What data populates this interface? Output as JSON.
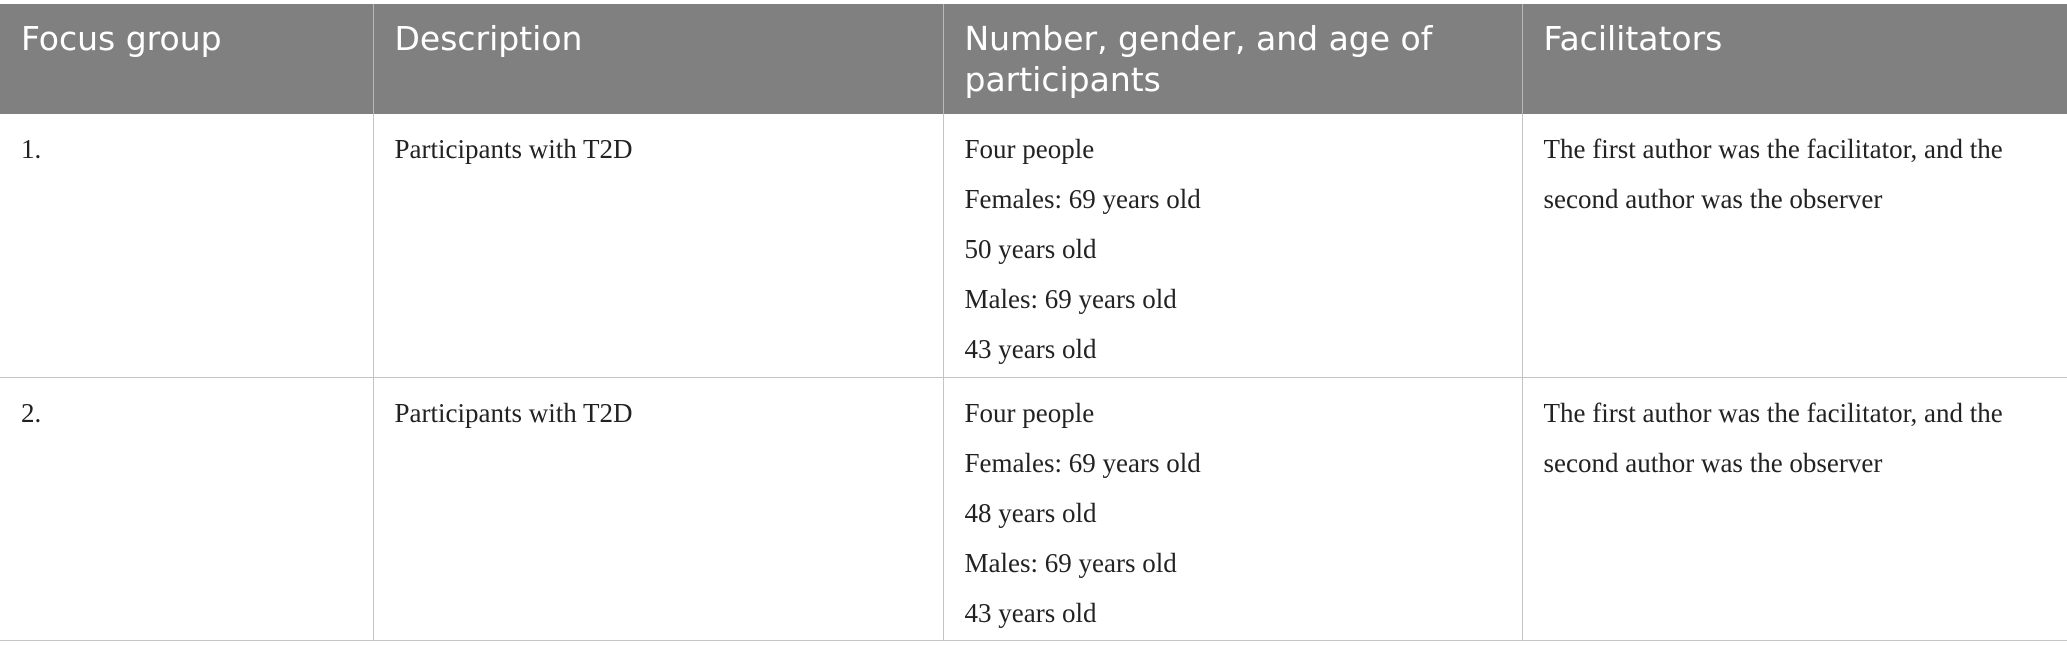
{
  "table": {
    "headers": [
      "Focus group",
      "Description",
      "Number, gender, and age of participants",
      "Facilitators"
    ],
    "rows": [
      {
        "focus_group": "1.",
        "description": "Participants with T2D",
        "participants": [
          "Four people",
          "Females: 69 years old",
          "50 years old",
          "Males: 69 years old",
          "43 years old"
        ],
        "facilitators": "The first author was the facilitator, and the second author was the observer"
      },
      {
        "focus_group": "2.",
        "description": "Participants with T2D",
        "participants": [
          "Four people",
          "Females: 69 years old",
          "48 years old",
          "Males: 69 years old",
          "43 years old"
        ],
        "facilitators": "The first author was the facilitator, and the second author was the observer"
      }
    ]
  }
}
